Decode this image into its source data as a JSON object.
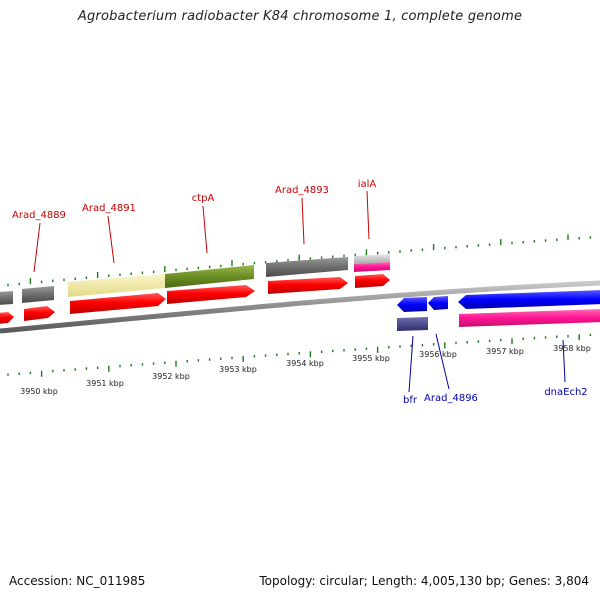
{
  "title": "Agrobacterium radiobacter K84 chromosome 1, complete genome",
  "footer": {
    "accession": "Accession: NC_011985",
    "topology": "Topology: circular; Length: 4,005,130 bp; Genes: 3,804"
  },
  "colors": {
    "backbone": "#888888",
    "tick": "#1a7a1a",
    "label_top": "#cc0000",
    "label_bottom": "#0000aa"
  },
  "ticks": [
    {
      "label": "3950 kbp"
    },
    {
      "label": "3951 kbp"
    },
    {
      "label": "3952 kbp"
    },
    {
      "label": "3953 kbp"
    },
    {
      "label": "3954 kbp"
    },
    {
      "label": "3955 kbp"
    },
    {
      "label": "3956 kbp"
    },
    {
      "label": "3957 kbp"
    },
    {
      "label": "3958 kbp"
    }
  ],
  "gene_labels_top": [
    {
      "name": "Arad_4889"
    },
    {
      "name": "Arad_4891"
    },
    {
      "name": "ctpA"
    },
    {
      "name": "Arad_4893"
    },
    {
      "name": "ialA"
    }
  ],
  "gene_labels_bottom": [
    {
      "name": "bfr"
    },
    {
      "name": "Arad_4896"
    },
    {
      "name": "dnaEch2"
    }
  ]
}
